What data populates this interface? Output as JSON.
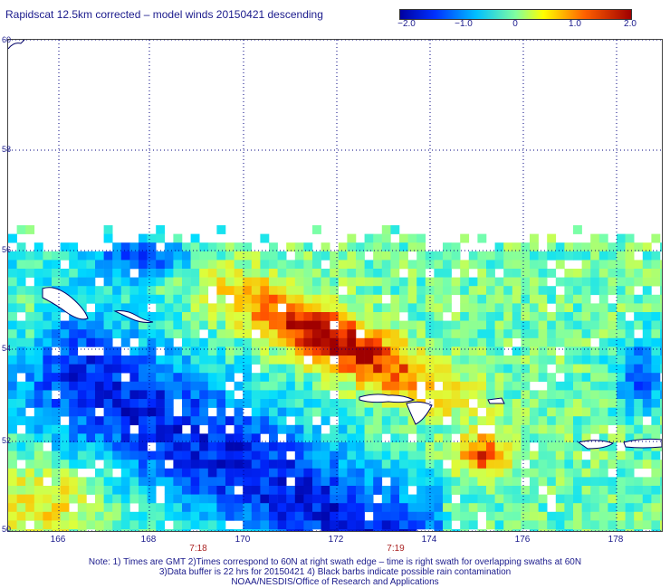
{
  "title": "Rapidscat 12.5km corrected – model winds 20150421 descending",
  "colorbar": {
    "labels": [
      "−2.0",
      "−1.0",
      "0",
      "1.0",
      "2.0"
    ],
    "colors": [
      "#0000a0",
      "#0050ff",
      "#00e0ff",
      "#b0ff60",
      "#ffe000",
      "#ff6000",
      "#a00000"
    ]
  },
  "map": {
    "lat_labels": [
      "60",
      "58",
      "56",
      "54",
      "52",
      "50"
    ],
    "lon_labels": [
      "166",
      "168",
      "170",
      "172",
      "174",
      "176",
      "178"
    ],
    "time_labels": [
      "7:18",
      "7:19"
    ],
    "lat_range": [
      50,
      60
    ],
    "lon_range": [
      165,
      179
    ],
    "grid": "dotted",
    "data_coverage_lat": [
      50,
      56.6
    ]
  },
  "notes": [
    "Note: 1) Times are GMT 2)Times correspond to 60N at right swath edge – time is right swath for overlapping swaths at 60N",
    "3)Data buffer is 22 hrs for 20150421 4) Black barbs indicate possible rain contamination",
    "NOAA/NESDIS/Office of Research and Applications"
  ]
}
